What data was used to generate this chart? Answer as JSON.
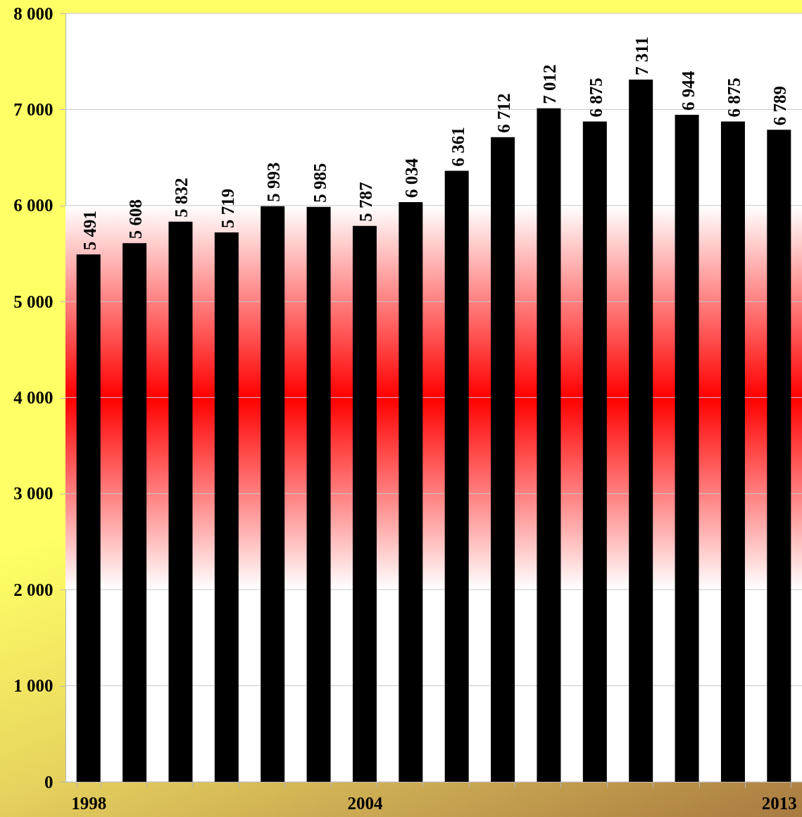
{
  "chart_data": {
    "type": "bar",
    "categories": [
      "1998",
      null,
      null,
      null,
      null,
      null,
      "2004",
      null,
      null,
      null,
      null,
      null,
      null,
      null,
      null,
      "2013"
    ],
    "values": [
      5491,
      5608,
      5832,
      5719,
      5993,
      5985,
      5787,
      6034,
      6361,
      6712,
      7012,
      6875,
      7311,
      6944,
      6875,
      6789
    ],
    "value_labels": [
      "5 491",
      "5 608",
      "5 832",
      "5 719",
      "5 993",
      "5 985",
      "5 787",
      "6 034",
      "6 361",
      "6 712",
      "7 012",
      "6 875",
      "7 311",
      "6 944",
      "6 875",
      "6 789"
    ],
    "color": "#000000",
    "ylim": [
      0,
      8000
    ],
    "yticks": [
      0,
      {
        "value": 1000,
        "label": "1 000"
      },
      {
        "value": 2000,
        "label": "2 000"
      },
      {
        "value": 3000,
        "label": "3 000"
      },
      {
        "value": 4000,
        "label": "4 000"
      },
      {
        "value": 5000,
        "label": "5 000"
      },
      {
        "value": 6000,
        "label": "6 000"
      },
      {
        "value": 7000,
        "label": "7 000"
      },
      {
        "value": 8000,
        "label": "8 000"
      }
    ],
    "bands": [
      {
        "axis": "y",
        "from": 2000,
        "to": 6000,
        "color": "#ff0000"
      }
    ],
    "grid": "y"
  }
}
